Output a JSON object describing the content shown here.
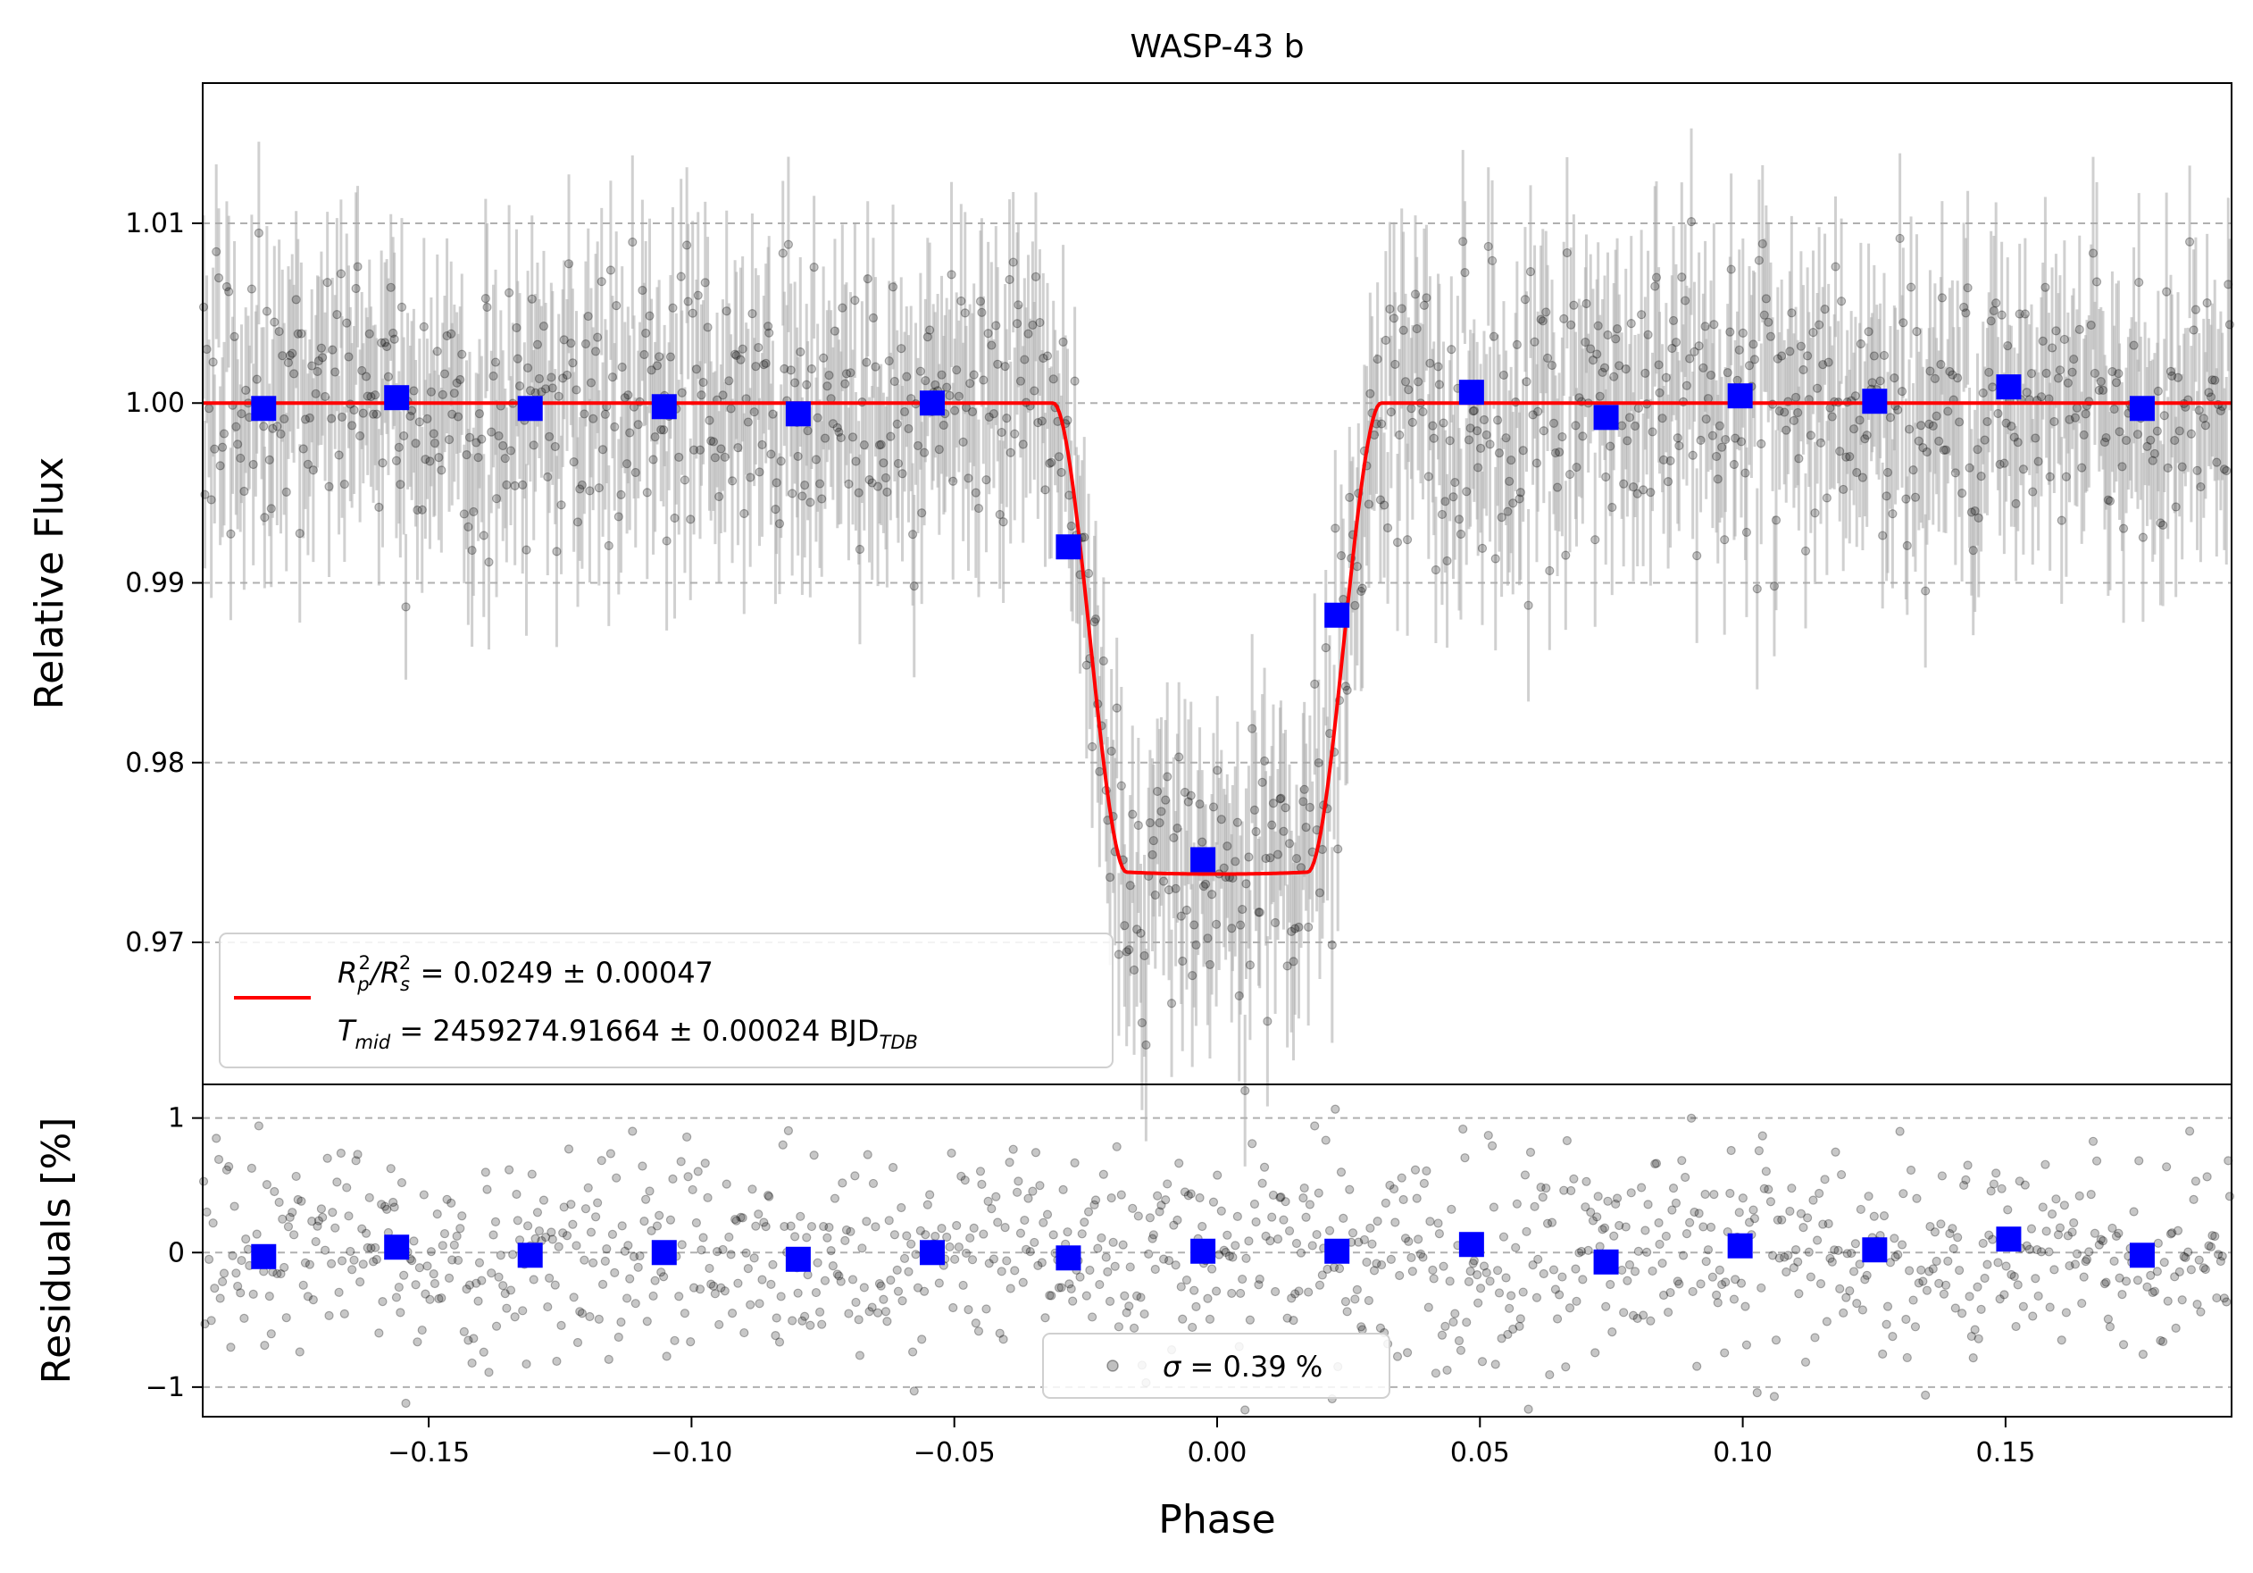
{
  "chart_data": [
    {
      "type": "scatter",
      "panel": "main",
      "title": "WASP-43 b",
      "xlabel": "",
      "ylabel": "Relative Flux",
      "xlim": [
        -0.193,
        0.193
      ],
      "ylim": [
        0.9621,
        1.0178
      ],
      "yticks": [
        0.97,
        0.98,
        0.99,
        1.0,
        1.01
      ],
      "ytick_labels": [
        "0.97",
        "0.98",
        "0.99",
        "1.00",
        "1.01"
      ],
      "grid": "horizontal dashed",
      "legend": "lower-left",
      "model": {
        "name": "transit model",
        "color": "#ff0000",
        "depth": 0.0262,
        "t1": -0.0312,
        "t2": -0.0172,
        "t3": 0.0172,
        "t4": 0.0312,
        "limb_darkening": 0.3
      },
      "legend_entry": {
        "line1_prefix": "R",
        "line1_sub_p": "p",
        "line1_sup": "2",
        "line1_slash": "/R",
        "line1_sub_s": "s",
        "line1_value": " = 0.0249 ± 0.00047",
        "line2_prefix": "T",
        "line2_sub": "mid",
        "line2_value": " = 2459274.91664 ± 0.00024 BJD",
        "line2_unit_sub": "TDB"
      },
      "binned": {
        "name": "binned data",
        "color": "#0000ff",
        "x": [
          -0.1814,
          -0.1561,
          -0.1307,
          -0.1052,
          -0.0797,
          -0.0542,
          -0.0283,
          -0.0027,
          0.0228,
          0.0484,
          0.074,
          0.0995,
          0.1251,
          0.1506,
          0.176
        ],
        "y": [
          0.9997,
          1.0003,
          0.9997,
          0.9998,
          0.9994,
          1.0,
          0.992,
          0.9746,
          0.9882,
          1.0006,
          0.9992,
          1.0004,
          1.0001,
          1.0009,
          0.9997
        ]
      },
      "raw": {
        "name": "unbinned data",
        "color": "#000000",
        "n_points": 1050,
        "scatter_sigma": 0.0039,
        "errorbar_color": "#a9a9a9",
        "typical_error": 0.0045
      }
    },
    {
      "type": "scatter",
      "panel": "residuals",
      "xlabel": "Phase",
      "ylabel": "Residuals [%]",
      "xlim": [
        -0.193,
        0.193
      ],
      "ylim": [
        -1.22,
        1.25
      ],
      "yticks": [
        -1,
        0,
        1
      ],
      "ytick_labels": [
        "−1",
        "0",
        "1"
      ],
      "xticks": [
        -0.15,
        -0.1,
        -0.05,
        0.0,
        0.05,
        0.1,
        0.15
      ],
      "xtick_labels": [
        "−0.15",
        "−0.10",
        "−0.05",
        "0.00",
        "0.05",
        "0.10",
        "0.15"
      ],
      "grid": "horizontal dashed",
      "legend": "lower-center",
      "legend_label_symbol": "σ",
      "legend_label_value": " = 0.39 %",
      "binned": {
        "name": "binned residuals",
        "color": "#0000ff",
        "x": [
          -0.1814,
          -0.1561,
          -0.1307,
          -0.1052,
          -0.0797,
          -0.0542,
          -0.0283,
          -0.0027,
          0.0228,
          0.0484,
          0.074,
          0.0995,
          0.1251,
          0.1506,
          0.176
        ],
        "y": [
          -0.03,
          0.04,
          -0.02,
          0.0,
          -0.05,
          0.0,
          -0.04,
          0.01,
          0.01,
          0.06,
          -0.07,
          0.05,
          0.02,
          0.1,
          -0.02
        ]
      },
      "raw": {
        "name": "residual points",
        "color": "#000000",
        "n_points": 1050,
        "scatter_sigma_percent": 0.39
      }
    }
  ]
}
